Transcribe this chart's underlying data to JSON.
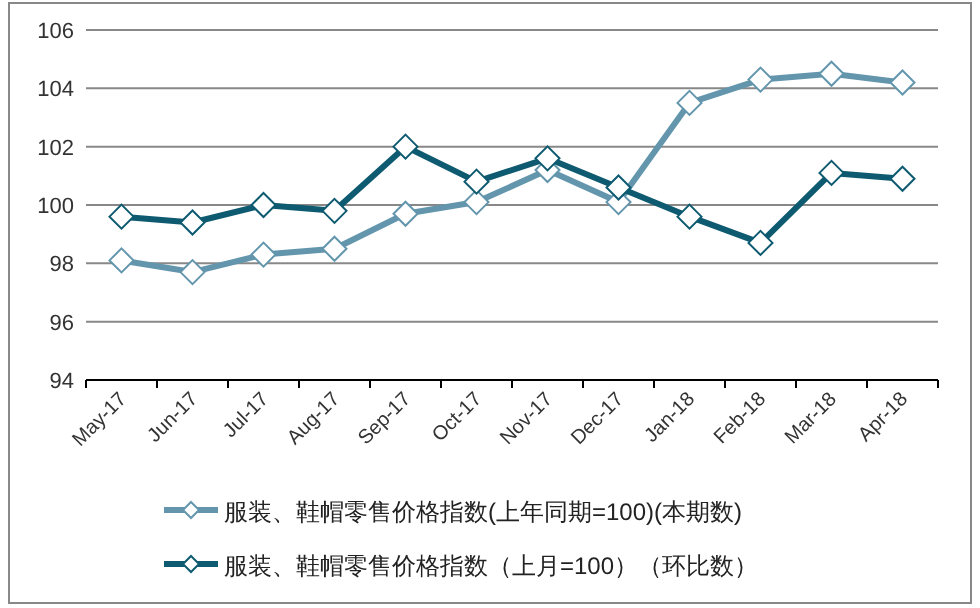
{
  "chart_data": {
    "type": "line",
    "categories": [
      "May-17",
      "Jun-17",
      "Jul-17",
      "Aug-17",
      "Sep-17",
      "Oct-17",
      "Nov-17",
      "Dec-17",
      "Jan-18",
      "Feb-18",
      "Mar-18",
      "Apr-18"
    ],
    "series": [
      {
        "name": "服装、鞋帽零售价格指数(上年同期=100)(本期数)",
        "color": "#6396ad",
        "values": [
          98.1,
          97.7,
          98.3,
          98.5,
          99.7,
          100.1,
          101.2,
          100.1,
          103.5,
          104.3,
          104.5,
          104.2
        ]
      },
      {
        "name": "服装、鞋帽零售价格指数（上月=100）（环比数）",
        "color": "#0e5a70",
        "values": [
          99.6,
          99.4,
          100.0,
          99.8,
          102.0,
          100.8,
          101.6,
          100.6,
          99.6,
          98.7,
          101.1,
          100.9
        ]
      }
    ],
    "ylim": [
      94,
      106
    ],
    "yticks": [
      94,
      96,
      98,
      100,
      102,
      104,
      106
    ],
    "grid": "y",
    "legend": "bottom",
    "marker": "diamond",
    "line_style": "solid"
  }
}
